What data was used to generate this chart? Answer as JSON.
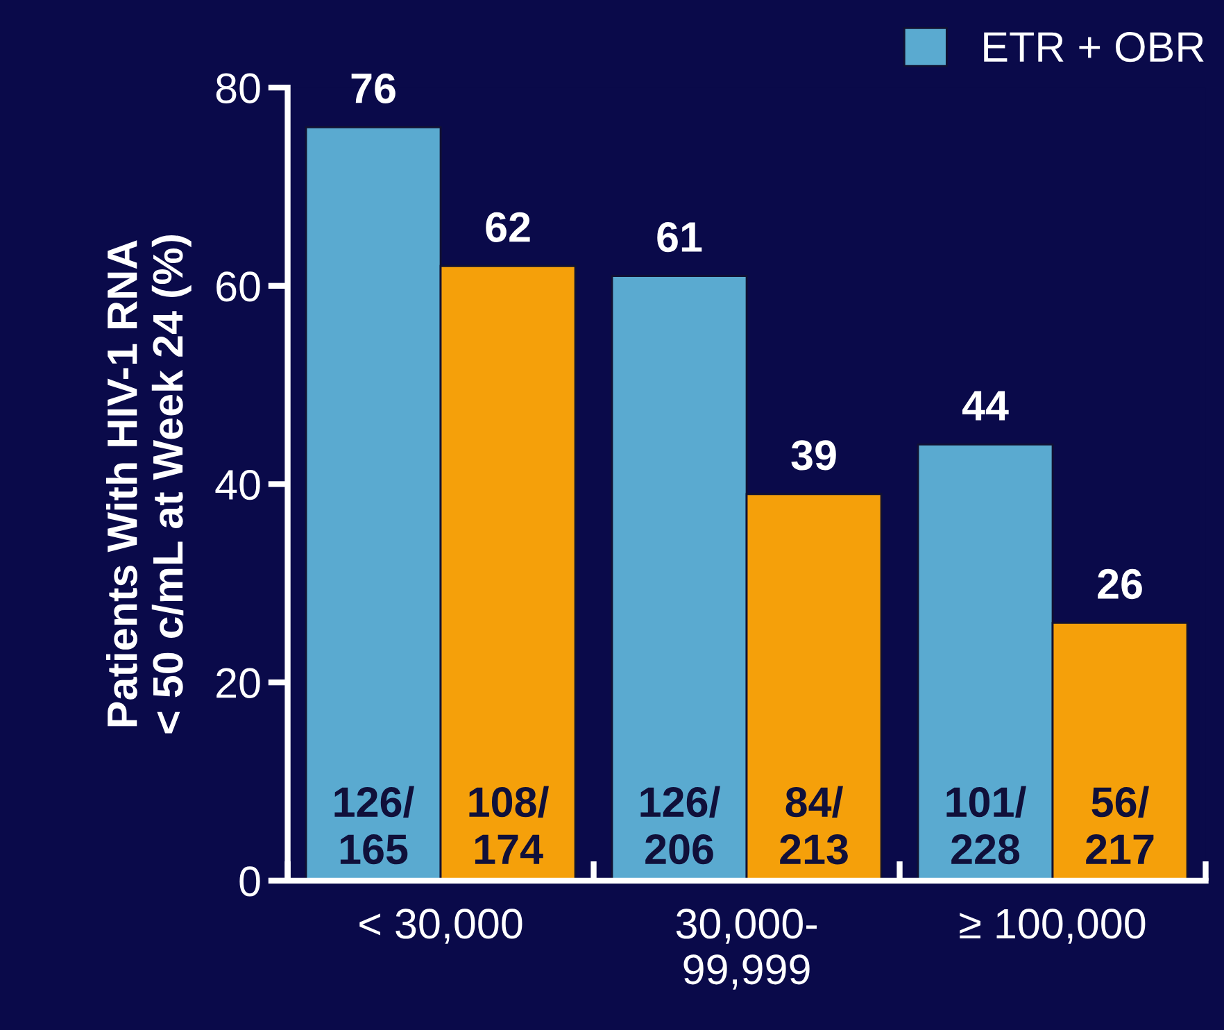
{
  "chart_data": {
    "type": "bar",
    "categories": [
      "< 30,000",
      "30,000-\n99,999",
      "≥ 100,000"
    ],
    "ylabel": "Patients With HIV-1 RNA\n< 50 c/mL at Week 24 (%)",
    "series": [
      {
        "name": "ETR + OBR",
        "color": "#5aaad0",
        "values": [
          76,
          61,
          44
        ]
      },
      {
        "color": "#f5a00a",
        "values": [
          62,
          39,
          26
        ]
      }
    ],
    "data_labels": true,
    "annotations": [
      "126/\n165",
      "126/\n206",
      "101/\n228",
      "108/\n174",
      "84/\n213",
      "56/\n217"
    ],
    "ylim": [
      0,
      80
    ],
    "yticks": [
      0,
      20,
      40,
      60,
      80
    ],
    "grid": false,
    "legend": "top right"
  }
}
